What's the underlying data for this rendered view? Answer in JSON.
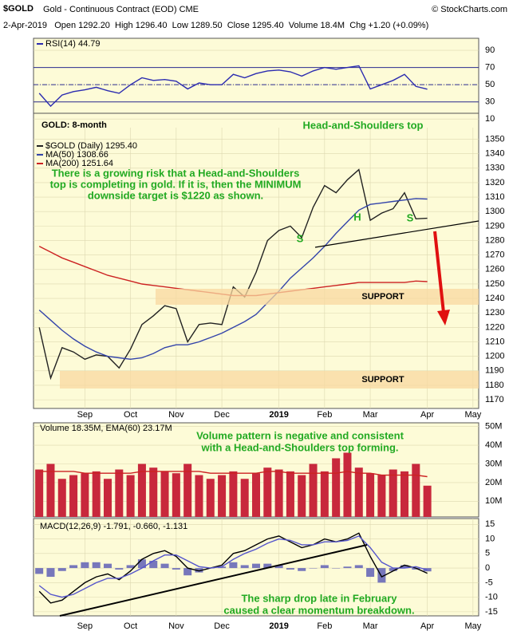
{
  "header": {
    "symbol": "$GOLD",
    "name": "Gold - Continuous Contract (EOD) CME",
    "credit": "© StockCharts.com",
    "quote": "2-Apr-2019   Open 1292.20  High 1296.40  Low 1289.50  Close 1295.40  Volume 18.4M  Chg +1.20 (+0.09%)"
  },
  "chart_data": [
    {
      "type": "line",
      "ylim": [
        0,
        104
      ],
      "yticks": [
        10,
        30,
        50,
        70,
        90
      ],
      "reference_lines": [
        30,
        50,
        70
      ],
      "series": [
        {
          "name": "RSI(14) 44.79",
          "color": "#2b2bb0",
          "values": [
            40,
            25,
            38,
            42,
            44,
            47,
            43,
            40,
            50,
            58,
            55,
            56,
            54,
            45,
            52,
            50,
            50,
            62,
            58,
            63,
            66,
            67,
            65,
            60,
            66,
            70,
            68,
            70,
            72,
            45,
            50,
            55,
            62,
            48,
            44.79,
            null,
            null,
            null,
            null
          ]
        }
      ]
    },
    {
      "type": "line",
      "ylim": [
        1164,
        1358
      ],
      "yticks": [
        1170,
        1180,
        1190,
        1200,
        1210,
        1220,
        1230,
        1240,
        1250,
        1260,
        1270,
        1280,
        1290,
        1300,
        1310,
        1320,
        1330,
        1340,
        1350
      ],
      "categories": [
        null,
        null,
        null,
        null,
        "Sep",
        null,
        null,
        null,
        "Oct",
        null,
        null,
        null,
        "Nov",
        null,
        null,
        null,
        "Dec",
        null,
        null,
        null,
        null,
        "2019",
        null,
        null,
        null,
        "Feb",
        null,
        null,
        null,
        "Mar",
        null,
        null,
        null,
        null,
        "Apr",
        null,
        null,
        null,
        "May"
      ],
      "title": "GOLD: 8-month",
      "subtitle": "Head-and-Shoulders top",
      "annotations": [
        "There is a growing risk that a Head-and-Shoulders",
        "top is completing in gold. If it is, then the MINIMUM",
        "downside target is $1220 as shown.",
        "S",
        "H",
        "S",
        "SUPPORT",
        "SUPPORT"
      ],
      "series": [
        {
          "name": "$GOLD (Daily) 1295.40",
          "color": "#222222",
          "values": [
            1220,
            1185,
            1206,
            1203,
            1198,
            1201,
            1200,
            1192,
            1205,
            1222,
            1228,
            1235,
            1233,
            1210,
            1222,
            1223,
            1222,
            1248,
            1241,
            1258,
            1280,
            1287,
            1290,
            1282,
            1303,
            1318,
            1313,
            1322,
            1329,
            1294,
            1299,
            1302,
            1313,
            1295,
            1295.4,
            null,
            null,
            null,
            null
          ]
        },
        {
          "name": "MA(50) 1308.66",
          "color": "#3344aa",
          "values": [
            1232,
            1225,
            1218,
            1212,
            1207,
            1203,
            1200,
            1199,
            1198,
            1199,
            1202,
            1206,
            1208,
            1208,
            1210,
            1213,
            1216,
            1220,
            1224,
            1229,
            1237,
            1245,
            1254,
            1261,
            1268,
            1276,
            1285,
            1293,
            1301,
            1305,
            1306,
            1307,
            1308,
            1309,
            1308.66,
            null,
            null,
            null,
            null
          ]
        },
        {
          "name": "MA(200) 1251.64",
          "color": "#cc2222",
          "values": [
            1276,
            1272,
            1268,
            1265,
            1262,
            1259,
            1256,
            1254,
            1252,
            1250,
            1249,
            1248,
            1247,
            1246,
            1245,
            1244,
            1243,
            1242,
            1242,
            1242,
            1243,
            1244,
            1245,
            1246,
            1247,
            1248,
            1249,
            1250,
            1251,
            1251,
            1251,
            1251,
            1251,
            1252,
            1251.64,
            null,
            null,
            null,
            null
          ]
        }
      ]
    },
    {
      "type": "bar",
      "ylim": [
        1.6,
        52
      ],
      "yticks": [
        {
          "value": 10,
          "label": "10M"
        },
        {
          "value": 20,
          "label": "20M"
        },
        {
          "value": 30,
          "label": "30M"
        },
        {
          "value": 40,
          "label": "40M"
        },
        {
          "value": 50,
          "label": "50M"
        }
      ],
      "legend": "Volume 18.35M, EMA(60) 23.17M",
      "annotations": [
        "Volume pattern is negative and consistent",
        "with a Head-and-Shoulders top forming."
      ],
      "series": [
        {
          "color": "#c8283c",
          "values": [
            27,
            30,
            22,
            24,
            25,
            26,
            22,
            27,
            24,
            30,
            28,
            26,
            25,
            30,
            24,
            22,
            24,
            26,
            22,
            25,
            28,
            27,
            26,
            24,
            30,
            26,
            33,
            36,
            28,
            25,
            24,
            27,
            26,
            30,
            18.35,
            null,
            null,
            null,
            null
          ]
        },
        {
          "type": "line",
          "color": "#cc2222",
          "values": [
            26,
            26,
            26,
            26,
            25,
            25,
            25,
            25,
            25,
            26,
            26,
            26,
            26,
            26,
            26,
            25,
            25,
            25,
            25,
            25,
            26,
            26,
            25,
            25,
            25,
            25,
            25,
            26,
            25,
            25,
            24,
            24,
            24,
            24,
            23.17,
            null,
            null,
            null,
            null
          ]
        }
      ]
    },
    {
      "type": "line",
      "ylim": [
        -16.4,
        17
      ],
      "yticks": [
        -15,
        -10,
        -5,
        0,
        5,
        10,
        15
      ],
      "categories": [
        null,
        null,
        null,
        null,
        "Sep",
        null,
        null,
        null,
        "Oct",
        null,
        null,
        null,
        "Nov",
        null,
        null,
        null,
        "Dec",
        null,
        null,
        null,
        null,
        "2019",
        null,
        null,
        null,
        "Feb",
        null,
        null,
        null,
        "Mar",
        null,
        null,
        null,
        null,
        "Apr",
        null,
        null,
        null,
        "May"
      ],
      "legend": "MACD(12,26,9) -1.791, -0.660, -1.131",
      "annotations": [
        "The sharp drop late in February",
        "caused a clear momentum breakdown."
      ],
      "series": [
        {
          "type": "bar",
          "color": "#7777bb",
          "values": [
            -2,
            -3,
            -1,
            1,
            2,
            2,
            1.5,
            -0.5,
            1,
            3,
            2.5,
            1.5,
            -0.5,
            -2.5,
            -1.5,
            0,
            0.5,
            2,
            1,
            1.5,
            1.5,
            1,
            -0.5,
            -1,
            0,
            1,
            0,
            0.5,
            1,
            -3,
            -5,
            -1,
            1,
            -0.5,
            -1.131,
            null,
            null,
            null,
            null
          ]
        },
        {
          "color": "#000000",
          "values": [
            -8,
            -12,
            -11,
            -8,
            -5,
            -3,
            -2,
            -4,
            -1,
            3,
            5,
            6,
            4,
            0,
            -1,
            0,
            1,
            5,
            6,
            8,
            10,
            11,
            9,
            7,
            8,
            10,
            9,
            10,
            12,
            4,
            -3,
            -1,
            1,
            0,
            -1.791,
            null,
            null,
            null,
            null
          ]
        },
        {
          "color": "#5555cc",
          "values": [
            -6,
            -9,
            -10,
            -9,
            -7,
            -5,
            -3.5,
            -3.5,
            -2,
            0,
            2.5,
            4.5,
            4.5,
            2.5,
            0.5,
            0,
            0.5,
            3,
            5,
            6.5,
            8.5,
            10,
            9.5,
            8,
            8,
            9,
            9,
            9.5,
            11,
            7,
            2,
            0,
            0,
            0.5,
            -0.66,
            null,
            null,
            null,
            null
          ]
        }
      ]
    }
  ]
}
